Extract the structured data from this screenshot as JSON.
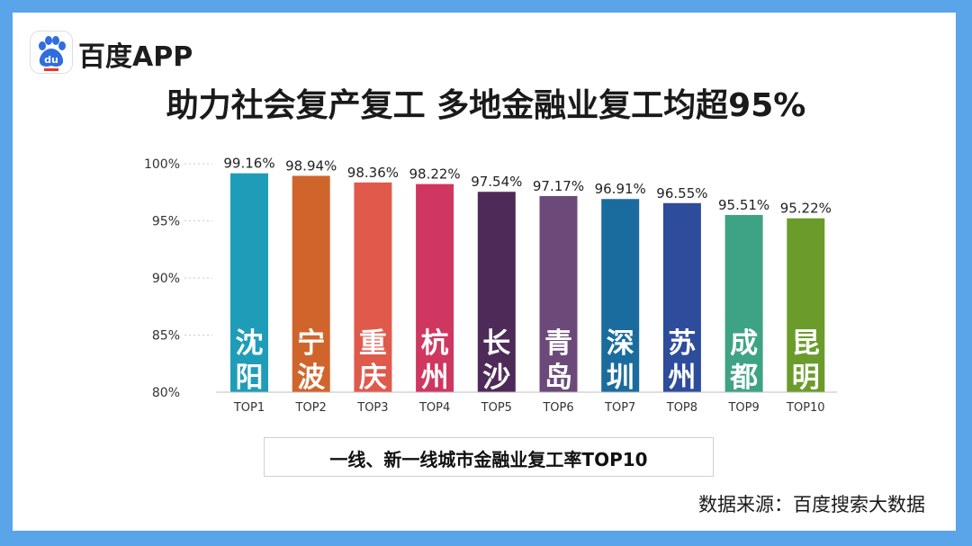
{
  "brand": {
    "name": "百度APP",
    "logo_icon": "baidu-paw-logo-icon"
  },
  "title": "助力社会复产复工 多地金融业复工均超95%",
  "legend": "一线、新一线城市金融业复工率TOP10",
  "source": "数据来源：百度搜索大数据",
  "colors": {
    "frame": "#5aa4ea",
    "baidu_blue": "#2f6de0"
  },
  "chart_data": {
    "type": "bar",
    "title": "助力社会复产复工 多地金融业复工均超95%",
    "xlabel": "",
    "ylabel": "",
    "ylim": [
      80,
      100
    ],
    "yticks": [
      "80%",
      "85%",
      "90%",
      "95%",
      "100%"
    ],
    "ytick_values": [
      80,
      85,
      90,
      95,
      100
    ],
    "grid": "dotted",
    "categories": [
      "TOP1",
      "TOP2",
      "TOP3",
      "TOP4",
      "TOP5",
      "TOP6",
      "TOP7",
      "TOP8",
      "TOP9",
      "TOP10"
    ],
    "cities": [
      [
        "沈",
        "阳"
      ],
      [
        "宁",
        "波"
      ],
      [
        "重",
        "庆"
      ],
      [
        "杭",
        "州"
      ],
      [
        "长",
        "沙"
      ],
      [
        "青",
        "岛"
      ],
      [
        "深",
        "圳"
      ],
      [
        "苏",
        "州"
      ],
      [
        "成",
        "都"
      ],
      [
        "昆",
        "明"
      ]
    ],
    "values": [
      99.16,
      98.94,
      98.36,
      98.22,
      97.54,
      97.17,
      96.91,
      96.55,
      95.51,
      95.22
    ],
    "value_labels": [
      "99.16%",
      "98.94%",
      "98.36%",
      "98.22%",
      "97.54%",
      "97.17%",
      "96.91%",
      "96.55%",
      "95.51%",
      "95.22%"
    ],
    "bar_colors": [
      "#1f9db8",
      "#d0652c",
      "#e05a4c",
      "#cf3760",
      "#4e2a59",
      "#6b4a7a",
      "#1b6c9e",
      "#2e4c9c",
      "#3ea384",
      "#6b9c2b"
    ]
  }
}
